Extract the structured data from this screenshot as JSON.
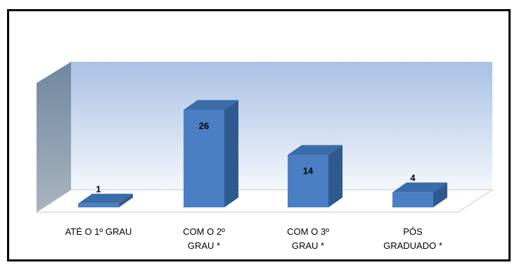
{
  "chart_data": {
    "type": "bar",
    "categories": [
      [
        "ATÉ O 1º GRAU"
      ],
      [
        "COM O 2º",
        "GRAU *"
      ],
      [
        "COM O 3º",
        "GRAU *"
      ],
      [
        "PÓS",
        "GRADUADO *"
      ]
    ],
    "values": [
      1,
      26,
      14,
      4
    ],
    "data_labels": [
      "1",
      "26",
      "14",
      "4"
    ],
    "title": "",
    "xlabel": "",
    "ylabel": "",
    "ylim": [
      0,
      30
    ],
    "grid": false,
    "legend": "none",
    "style": "3d-column",
    "colors": {
      "bar_front": "#4a7fc3",
      "bar_side": "#2f5a8f",
      "bar_top": "#3a6ca8",
      "wall_top": "#a9c1e4",
      "wall_bottom": "#f4f7fc",
      "side_wall_top": "#6f87a0",
      "side_wall_bottom": "#a9b4c0",
      "frame": "#000000"
    }
  }
}
